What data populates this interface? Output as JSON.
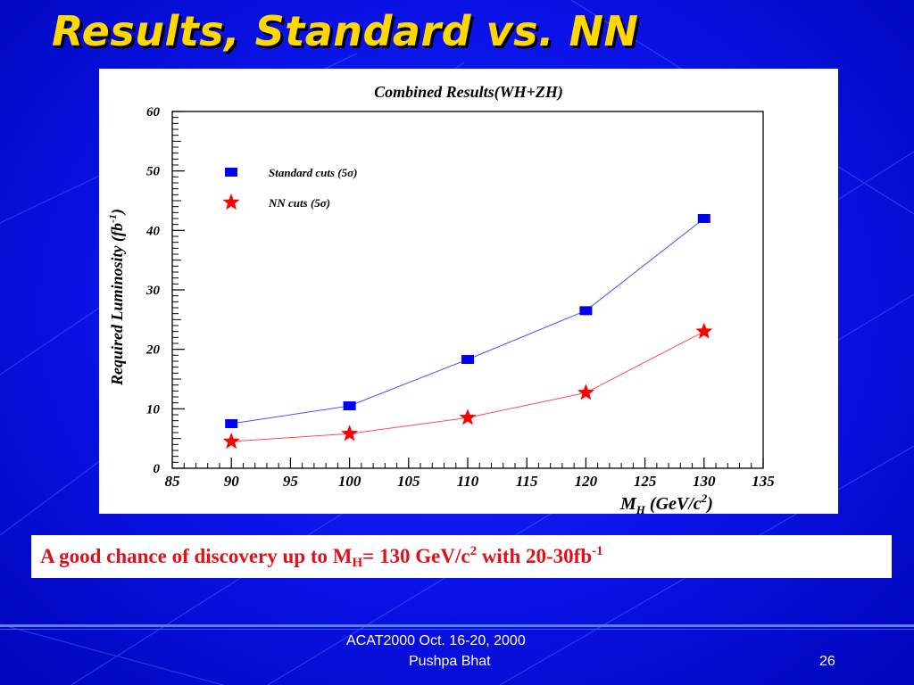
{
  "slide": {
    "title": "Results, Standard vs. NN",
    "caption_prefix": "A good chance of discovery up to M",
    "caption_sub": "H",
    "caption_mid": "= 130 GeV/c",
    "caption_sup1": "2",
    "caption_suffix": " with 20-30fb",
    "caption_sup2": "-1",
    "footer_event": "ACAT2000  Oct. 16-20, 2000",
    "footer_author": "Pushpa Bhat",
    "page_number": "26"
  },
  "colors": {
    "background": "#0a12e6",
    "title": "#ffd800",
    "caption": "#e0101a",
    "standard_series": "#0000ff",
    "nn_series": "#ff0000"
  },
  "chart_data": {
    "type": "line",
    "title": "Combined Results(WH+ZH)",
    "xlabel": "M_H (GeV/c^2)",
    "xlabel_main": "M",
    "xlabel_sub": "H",
    "xlabel_rest": " (GeV/c",
    "xlabel_sup": "2",
    "xlabel_close": ")",
    "ylabel": "Required Luminosity (fb^-1)",
    "ylabel_main": "Required Luminosity (fb",
    "ylabel_sup": "-1",
    "ylabel_close": ")",
    "xlim": [
      85,
      135
    ],
    "ylim": [
      0,
      60
    ],
    "xticks": [
      85,
      90,
      95,
      100,
      105,
      110,
      115,
      120,
      125,
      130,
      135
    ],
    "yticks": [
      0,
      10,
      20,
      30,
      40,
      50,
      60
    ],
    "grid": false,
    "legend_position": "top-left",
    "series": [
      {
        "name": "Standard cuts (5σ)",
        "marker": "square",
        "color": "#0000ff",
        "x": [
          90,
          100,
          110,
          120,
          130
        ],
        "y": [
          7.5,
          10.5,
          18.3,
          26.5,
          42
        ]
      },
      {
        "name": "NN cuts (5σ)",
        "marker": "star",
        "color": "#ff0000",
        "x": [
          90,
          100,
          110,
          120,
          130
        ],
        "y": [
          4.5,
          5.8,
          8.5,
          12.7,
          23
        ]
      }
    ]
  }
}
